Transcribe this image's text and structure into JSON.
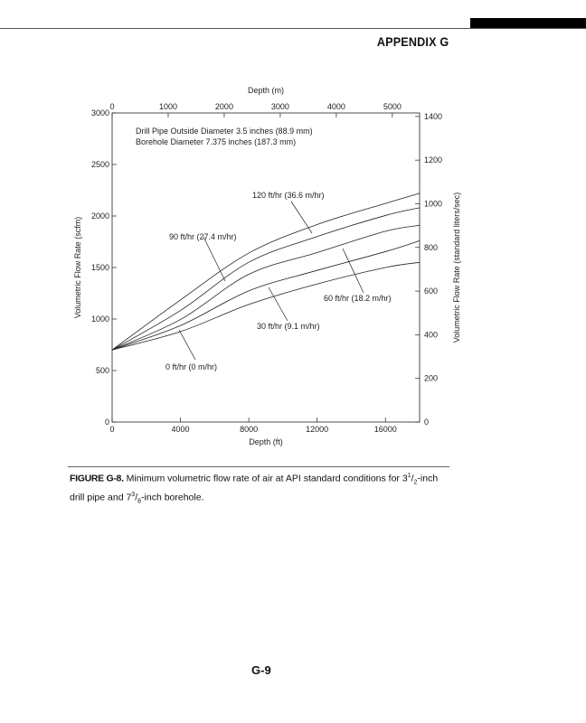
{
  "header": {
    "section": "APPENDIX G"
  },
  "chart_data": {
    "type": "line",
    "top_xlabel": "Depth (m)",
    "xlabel": "Depth (ft)",
    "ylabel": "Volumetric Flow Rate (scfm)",
    "y2label": "Volumetric Flow Rate (standard liters/sec)",
    "xlim": [
      0,
      18000
    ],
    "ylim": [
      0,
      3000
    ],
    "y2lim": [
      0,
      1416
    ],
    "x_ticks": [
      "0",
      "4000",
      "8000",
      "12000",
      "16000"
    ],
    "x_tick_values": [
      0,
      4000,
      8000,
      12000,
      16000
    ],
    "top_ticks": [
      "0",
      "1000",
      "2000",
      "3000",
      "4000",
      "5000"
    ],
    "top_tick_values_m": [
      0,
      1000,
      2000,
      3000,
      4000,
      5000
    ],
    "y_ticks": [
      "0",
      "500",
      "1000",
      "1500",
      "2000",
      "2500",
      "3000"
    ],
    "y_tick_values": [
      0,
      500,
      1000,
      1500,
      2000,
      2500,
      3000
    ],
    "y2_ticks": [
      "0",
      "200",
      "400",
      "600",
      "800",
      "1000",
      "1200",
      "1400"
    ],
    "y2_tick_values": [
      0,
      200,
      400,
      600,
      800,
      1000,
      1200,
      1400
    ],
    "annotations": [
      "Drill Pipe Outside Diameter 3.5 inches (88.9 mm)",
      "Borehole Diameter 7.375 inches (187.3 mm)"
    ],
    "x": [
      0,
      4000,
      8000,
      12000,
      16000,
      18000
    ],
    "series": [
      {
        "name": "120 ft/hr (36.6 m/hr)",
        "values": [
          700,
          1185,
          1640,
          1917,
          2122,
          2220
        ]
      },
      {
        "name": "90 ft/hr (27.4 m/hr)",
        "values": [
          700,
          1083,
          1551,
          1800,
          2005,
          2080
        ]
      },
      {
        "name": "60 ft/hr (18.2 m/hr)",
        "values": [
          700,
          995,
          1434,
          1645,
          1852,
          1910
        ]
      },
      {
        "name": "30 ft/hr (9.1 m/hr)",
        "values": [
          700,
          936,
          1273,
          1472,
          1654,
          1760
        ]
      },
      {
        "name": "0 ft/hr (0 m/hr)",
        "values": [
          700,
          878,
          1141,
          1340,
          1500,
          1550
        ]
      }
    ]
  },
  "caption": {
    "label": "FIGURE G-8.",
    "text1": " Minimum volumetric flow rate of air at API standard conditions for 3",
    "frac1_num": "1",
    "frac1_den": "2",
    "text2": "-inch drill pipe and 7",
    "frac2_num": "3",
    "frac2_den": "8",
    "text3": "-inch borehole."
  },
  "footer": {
    "page_number": "G-9"
  }
}
